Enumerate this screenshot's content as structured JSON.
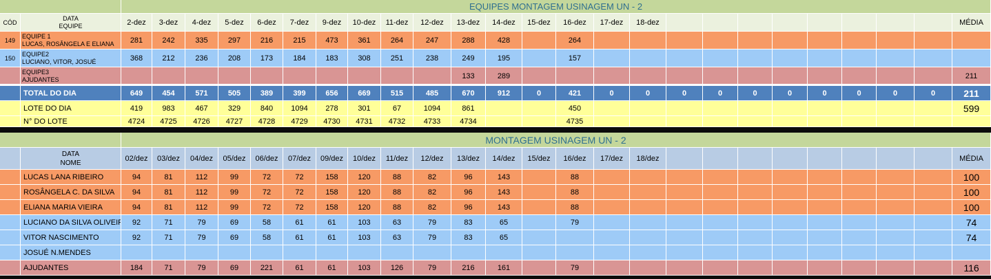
{
  "table1": {
    "title": "EQUIPES MONTAGEM USINAGEM UN - 2",
    "cod_label": "CÓD",
    "data_label": "DATA",
    "equipe_label": "EQUIPE",
    "media_label": "MÉDIA",
    "dates": [
      "2-dez",
      "3-dez",
      "4-dez",
      "5-dez",
      "6-dez",
      "7-dez",
      "9-dez",
      "10-dez",
      "11-dez",
      "12-dez",
      "13-dez",
      "14-dez",
      "15-dez",
      "16-dez",
      "17-dez",
      "18-dez",
      "",
      "",
      "",
      "",
      "",
      "",
      "",
      ""
    ],
    "rows": [
      {
        "cod": "149",
        "name1": "EQUIPE 1",
        "name2": "LUCAS, ROSÂNGELA E ELIANA",
        "values": [
          "281",
          "242",
          "335",
          "297",
          "216",
          "215",
          "473",
          "361",
          "264",
          "247",
          "288",
          "428",
          "",
          "264",
          "",
          "",
          "",
          "",
          "",
          "",
          "",
          "",
          "",
          ""
        ],
        "media": ""
      },
      {
        "cod": "150",
        "name1": "EQUIPE2",
        "name2": "LUCIANO, VITOR, JOSUÉ",
        "values": [
          "368",
          "212",
          "236",
          "208",
          "173",
          "184",
          "183",
          "308",
          "251",
          "238",
          "249",
          "195",
          "",
          "157",
          "",
          "",
          "",
          "",
          "",
          "",
          "",
          "",
          "",
          ""
        ],
        "media": ""
      },
      {
        "cod": "",
        "name1": "EQUIPE3",
        "name2": "AJUDANTES",
        "values": [
          "",
          "",
          "",
          "",
          "",
          "",
          "",
          "",
          "",
          "",
          "133",
          "289",
          "",
          "",
          "",
          "",
          "",
          "",
          "",
          "",
          "",
          "",
          "",
          ""
        ],
        "media": "211"
      }
    ],
    "total": {
      "label": "TOTAL DO DIA",
      "values": [
        "649",
        "454",
        "571",
        "505",
        "389",
        "399",
        "656",
        "669",
        "515",
        "485",
        "670",
        "912",
        "0",
        "421",
        "0",
        "0",
        "0",
        "0",
        "0",
        "0",
        "0",
        "0",
        "0",
        "0"
      ],
      "media": "211"
    },
    "lote": {
      "label": "LOTE DO DIA",
      "values": [
        "419",
        "983",
        "467",
        "329",
        "840",
        "1094",
        "278",
        "301",
        "67",
        "1094",
        "861",
        "",
        "",
        "450",
        "",
        "",
        "",
        "",
        "",
        "",
        "",
        "",
        "",
        ""
      ],
      "media": "599"
    },
    "nlote": {
      "label": "N° DO LOTE",
      "values": [
        "4724",
        "4725",
        "4726",
        "4727",
        "4728",
        "4729",
        "4730",
        "4731",
        "4732",
        "4733",
        "4734",
        "",
        "",
        "4735",
        "",
        "",
        "",
        "",
        "",
        "",
        "",
        "",
        "",
        ""
      ],
      "media": ""
    }
  },
  "table2": {
    "title": "MONTAGEM USINAGEM UN - 2",
    "data_label": "DATA",
    "nome_label": "NOME",
    "media_label": "MÉDIA",
    "dates": [
      "02/dez",
      "03/dez",
      "04/dez",
      "05/dez",
      "06/dez",
      "07/dez",
      "09/dez",
      "10/dez",
      "11/dez",
      "12/dez",
      "13/dez",
      "14/dez",
      "15/dez",
      "16/dez",
      "17/dez",
      "18/dez",
      "",
      "",
      "",
      "",
      "",
      "",
      "",
      ""
    ],
    "rows": [
      {
        "name": "LUCAS LANA RIBEIRO",
        "values": [
          "94",
          "81",
          "112",
          "99",
          "72",
          "72",
          "158",
          "120",
          "88",
          "82",
          "96",
          "143",
          "",
          "88",
          "",
          "",
          "",
          "",
          "",
          "",
          "",
          "",
          "",
          ""
        ],
        "media": "100",
        "color": "#f79a65"
      },
      {
        "name": "ROSÂNGELA C. DA SILVA",
        "values": [
          "94",
          "81",
          "112",
          "99",
          "72",
          "72",
          "158",
          "120",
          "88",
          "82",
          "96",
          "143",
          "",
          "88",
          "",
          "",
          "",
          "",
          "",
          "",
          "",
          "",
          "",
          ""
        ],
        "media": "100",
        "color": "#f79a65"
      },
      {
        "name": "ELIANA MARIA VIEIRA",
        "values": [
          "94",
          "81",
          "112",
          "99",
          "72",
          "72",
          "158",
          "120",
          "88",
          "82",
          "96",
          "143",
          "",
          "88",
          "",
          "",
          "",
          "",
          "",
          "",
          "",
          "",
          "",
          ""
        ],
        "media": "100",
        "color": "#f79a65"
      },
      {
        "name": "LUCIANO DA SILVA OLIVEIRA",
        "values": [
          "92",
          "71",
          "79",
          "69",
          "58",
          "61",
          "61",
          "103",
          "63",
          "79",
          "83",
          "65",
          "",
          "79",
          "",
          "",
          "",
          "",
          "",
          "",
          "",
          "",
          "",
          ""
        ],
        "media": "74",
        "color": "#9ecbf7"
      },
      {
        "name": "VITOR NASCIMENTO",
        "values": [
          "92",
          "71",
          "79",
          "69",
          "58",
          "61",
          "61",
          "103",
          "63",
          "79",
          "83",
          "65",
          "",
          "",
          "",
          "",
          "",
          "",
          "",
          "",
          "",
          "",
          "",
          ""
        ],
        "media": "74",
        "color": "#9ecbf7"
      },
      {
        "name": "JOSUÉ N.MENDES",
        "values": [
          "",
          "",
          "",
          "",
          "",
          "",
          "",
          "",
          "",
          "",
          "",
          "",
          "",
          "",
          "",
          "",
          "",
          "",
          "",
          "",
          "",
          "",
          "",
          ""
        ],
        "media": "",
        "color": "#9ecbf7"
      },
      {
        "name": "AJUDANTES",
        "values": [
          "184",
          "71",
          "79",
          "69",
          "221",
          "61",
          "61",
          "103",
          "126",
          "79",
          "216",
          "161",
          "",
          "79",
          "",
          "",
          "",
          "",
          "",
          "",
          "",
          "",
          "",
          ""
        ],
        "media": "116",
        "color": "#d99594"
      }
    ]
  },
  "colors": {
    "title_bg": "#c4d79b",
    "header_bg": "#ebf1de",
    "orange": "#f79a65",
    "blue": "#9ecbf7",
    "rose": "#d99594",
    "total": "#4f81bd",
    "yellow": "#ffff99",
    "header2": "#b8cce4"
  }
}
